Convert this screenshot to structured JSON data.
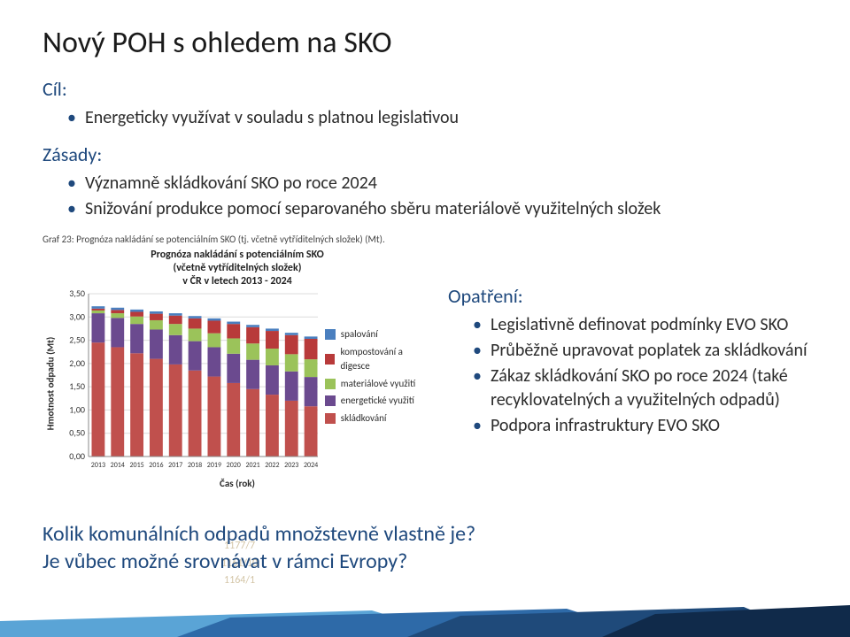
{
  "title": "Nový POH s ohledem na SKO",
  "cil": {
    "label": "Cíl:",
    "items": [
      "Energeticky využívat v souladu s platnou legislativou"
    ]
  },
  "zasady": {
    "label": "Zásady:",
    "items": [
      "Významně skládkování SKO po roce 2024",
      "Snižování produkce pomocí separovaného sběru materiálově využitelných složek"
    ]
  },
  "chart_caption": "Graf 23: Prognóza nakládání se potenciálním SKO (tj. včetně vytříditelných složek) (Mt).",
  "chart": {
    "type": "stacked-bar",
    "title": "Prognóza nakládání s potenciálním SKO\n(včetně vytříditelných složek)\nv ČR v letech 2013 - 2024",
    "ylabel": "Hmotnost odpadu (Mt)",
    "xlabel": "Čas (rok)",
    "years": [
      "2013",
      "2014",
      "2015",
      "2016",
      "2017",
      "2018",
      "2019",
      "2020",
      "2021",
      "2022",
      "2023",
      "2024"
    ],
    "ylim": [
      0,
      3.5
    ],
    "ytick_step": 0.5,
    "yticks": [
      "0,00",
      "0,50",
      "1,00",
      "1,50",
      "2,00",
      "2,50",
      "3,00",
      "3,50"
    ],
    "bar_width": 0.68,
    "background_color": "#ffffff",
    "grid_color": "#dcdcdc",
    "series_colors": {
      "spalovani": "#4a7fbf",
      "kompost": "#b83a3a",
      "material": "#9bc35a",
      "energ": "#6b4a8f",
      "sklad": "#c0504d"
    },
    "legend": [
      {
        "key": "spalovani",
        "label": "spalování"
      },
      {
        "key": "kompost",
        "label": "kompostování a digesce"
      },
      {
        "key": "material",
        "label": "materiálové využití"
      },
      {
        "key": "energ",
        "label": "energetické využití"
      },
      {
        "key": "sklad",
        "label": "skládkování"
      }
    ],
    "stacks": [
      {
        "sklad": 2.45,
        "energ": 0.63,
        "material": 0.06,
        "kompost": 0.04,
        "spalovani": 0.05
      },
      {
        "sklad": 2.35,
        "energ": 0.63,
        "material": 0.1,
        "kompost": 0.07,
        "spalovani": 0.05
      },
      {
        "sklad": 2.22,
        "energ": 0.63,
        "material": 0.16,
        "kompost": 0.1,
        "spalovani": 0.05
      },
      {
        "sklad": 2.1,
        "energ": 0.63,
        "material": 0.2,
        "kompost": 0.14,
        "spalovani": 0.05
      },
      {
        "sklad": 1.98,
        "energ": 0.63,
        "material": 0.24,
        "kompost": 0.18,
        "spalovani": 0.05
      },
      {
        "sklad": 1.85,
        "energ": 0.63,
        "material": 0.27,
        "kompost": 0.22,
        "spalovani": 0.05
      },
      {
        "sklad": 1.72,
        "energ": 0.63,
        "material": 0.3,
        "kompost": 0.27,
        "spalovani": 0.05
      },
      {
        "sklad": 1.58,
        "energ": 0.63,
        "material": 0.33,
        "kompost": 0.31,
        "spalovani": 0.05
      },
      {
        "sklad": 1.45,
        "energ": 0.63,
        "material": 0.35,
        "kompost": 0.35,
        "spalovani": 0.05
      },
      {
        "sklad": 1.33,
        "energ": 0.63,
        "material": 0.36,
        "kompost": 0.38,
        "spalovani": 0.05
      },
      {
        "sklad": 1.2,
        "energ": 0.63,
        "material": 0.37,
        "kompost": 0.41,
        "spalovani": 0.05
      },
      {
        "sklad": 1.08,
        "energ": 0.63,
        "material": 0.38,
        "kompost": 0.44,
        "spalovani": 0.05
      }
    ],
    "axis_fontsize": 10
  },
  "opatreni": {
    "label": "Opatření:",
    "items": [
      "Legislativně definovat podmínky EVO SKO",
      "Průběžně upravovat poplatek za skládkování",
      "Zákaz skládkování SKO po roce 2024 (také recyklovatelných a využitelných odpadů)",
      "Podpora infrastruktury EVO SKO"
    ]
  },
  "bottom_questions": [
    "Kolik komunálních odpadů množstevně vlastně je?",
    "Je vůbec možné srovnávat v rámci Evropy?"
  ],
  "ghost_numbers": [
    "1177/7",
    "1161/10",
    "1164/1"
  ],
  "footer_colors": [
    "#5aa4d6",
    "#2e6aa8",
    "#1f4a7a",
    "#102a4a"
  ]
}
